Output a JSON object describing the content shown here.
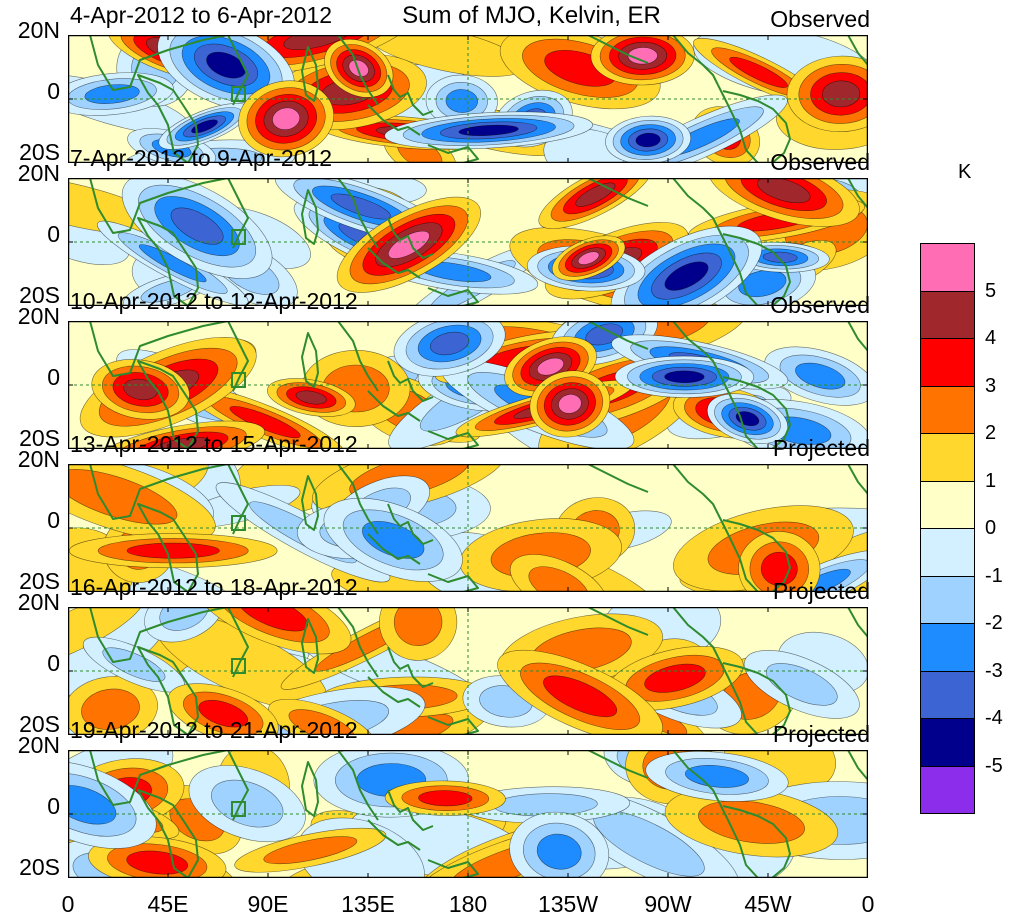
{
  "title": "Sum of MJO, Kelvin, ER",
  "unit": "K",
  "lat_labels": [
    "20N",
    "0",
    "20S"
  ],
  "lon_labels": [
    "0",
    "45E",
    "90E",
    "135E",
    "180",
    "135W",
    "90W",
    "45W",
    "0"
  ],
  "panels": [
    {
      "date": "4-Apr-2012 to 6-Apr-2012",
      "status": "Observed",
      "intensity": 1.0
    },
    {
      "date": "7-Apr-2012 to 9-Apr-2012",
      "status": "Observed",
      "intensity": 1.0
    },
    {
      "date": "10-Apr-2012 to 12-Apr-2012",
      "status": "Observed",
      "intensity": 0.95
    },
    {
      "date": "13-Apr-2012 to 15-Apr-2012",
      "status": "Projected",
      "intensity": 0.55
    },
    {
      "date": "16-Apr-2012 to 18-Apr-2012",
      "status": "Projected",
      "intensity": 0.6
    },
    {
      "date": "19-Apr-2012 to 21-Apr-2012",
      "status": "Projected",
      "intensity": 0.65
    }
  ],
  "colorbar": {
    "labels": [
      "5",
      "4",
      "3",
      "2",
      "1",
      "0",
      "-1",
      "-2",
      "-3",
      "-4",
      "-5"
    ],
    "colors": [
      "#ff6eb4",
      "#a0282d",
      "#ff0000",
      "#ff7300",
      "#ffd72d",
      "#ffffc8",
      "#d2f0ff",
      "#a0d2ff",
      "#1e8cff",
      "#3c64d2",
      "#00008c",
      "#8c2deb"
    ]
  },
  "chart_data": {
    "type": "heatmap",
    "title": "Sum of MJO, Kelvin, ER",
    "unit": "K",
    "x_range": [
      "0",
      "0"
    ],
    "x_ticks": [
      "0",
      "45E",
      "90E",
      "135E",
      "180",
      "135W",
      "90W",
      "45W",
      "0"
    ],
    "y_ticks": [
      "20N",
      "0",
      "20S"
    ],
    "levels": [
      -5,
      -4,
      -3,
      -2,
      -1,
      0,
      1,
      2,
      3,
      4,
      5
    ],
    "legend_position": "right"
  }
}
